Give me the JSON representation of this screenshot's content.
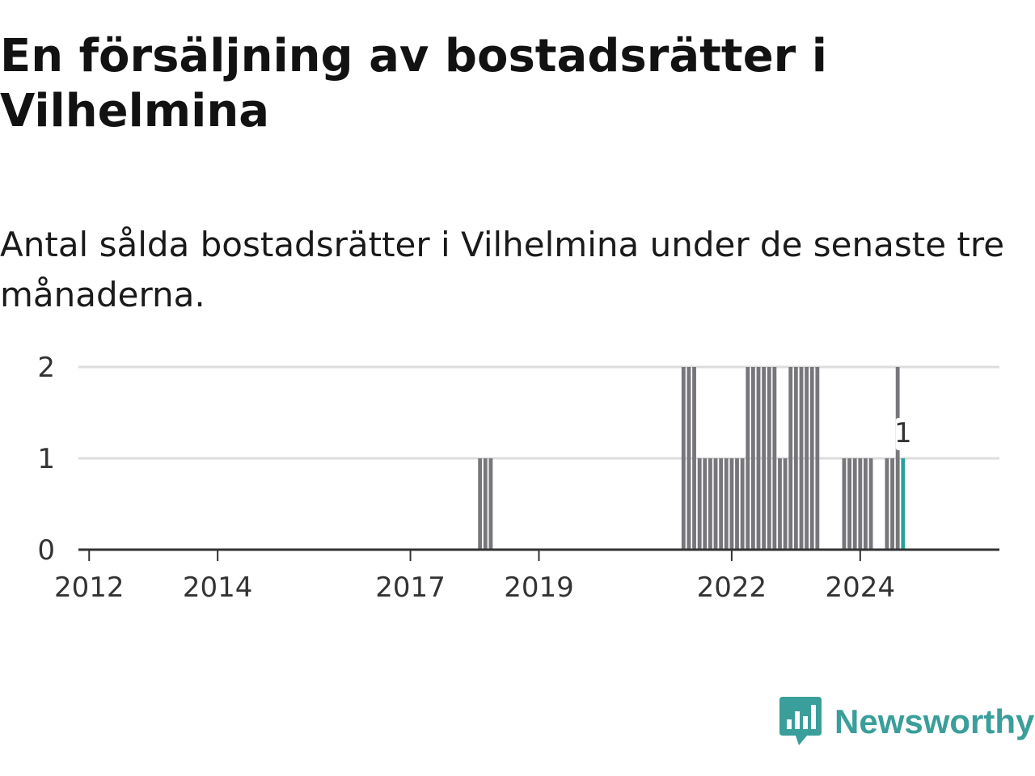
{
  "title": "En försäljning av bostadsrätter i Vilhelmina",
  "subtitle": "Antal sålda bostadsrätter i Vilhelmina under de senaste tre månaderna.",
  "brand": {
    "name": "Newsworthy",
    "color": "#3a9e9a",
    "icon": "newsworthy-logo-icon"
  },
  "colors": {
    "bar": "#76767b",
    "highlight": "#2aa198",
    "grid": "#dddddd",
    "axis": "#333333"
  },
  "chart_data": {
    "type": "bar",
    "title": "En försäljning av bostadsrätter i Vilhelmina",
    "xlabel": "",
    "ylabel": "",
    "ylim": [
      0,
      2
    ],
    "yticks": [
      0,
      1,
      2
    ],
    "xticks": [
      "2012",
      "2014",
      "2017",
      "2019",
      "2022",
      "2024"
    ],
    "grid": true,
    "annotation": {
      "period": "2024-09",
      "label": "1"
    },
    "bars": [
      {
        "period": "2018-02",
        "value": 1
      },
      {
        "period": "2018-03",
        "value": 1
      },
      {
        "period": "2018-04",
        "value": 1
      },
      {
        "period": "2021-04",
        "value": 2
      },
      {
        "period": "2021-05",
        "value": 2
      },
      {
        "period": "2021-06",
        "value": 2
      },
      {
        "period": "2021-07",
        "value": 1
      },
      {
        "period": "2021-08",
        "value": 1
      },
      {
        "period": "2021-09",
        "value": 1
      },
      {
        "period": "2021-10",
        "value": 1
      },
      {
        "period": "2021-11",
        "value": 1
      },
      {
        "period": "2021-12",
        "value": 1
      },
      {
        "period": "2022-01",
        "value": 1
      },
      {
        "period": "2022-02",
        "value": 1
      },
      {
        "period": "2022-03",
        "value": 1
      },
      {
        "period": "2022-04",
        "value": 2
      },
      {
        "period": "2022-05",
        "value": 2
      },
      {
        "period": "2022-06",
        "value": 2
      },
      {
        "period": "2022-07",
        "value": 2
      },
      {
        "period": "2022-08",
        "value": 2
      },
      {
        "period": "2022-09",
        "value": 2
      },
      {
        "period": "2022-10",
        "value": 1
      },
      {
        "period": "2022-11",
        "value": 1
      },
      {
        "period": "2022-12",
        "value": 2
      },
      {
        "period": "2023-01",
        "value": 2
      },
      {
        "period": "2023-02",
        "value": 2
      },
      {
        "period": "2023-03",
        "value": 2
      },
      {
        "period": "2023-04",
        "value": 2
      },
      {
        "period": "2023-05",
        "value": 2
      },
      {
        "period": "2023-10",
        "value": 1
      },
      {
        "period": "2023-11",
        "value": 1
      },
      {
        "period": "2023-12",
        "value": 1
      },
      {
        "period": "2024-01",
        "value": 1
      },
      {
        "period": "2024-02",
        "value": 1
      },
      {
        "period": "2024-03",
        "value": 1
      },
      {
        "period": "2024-06",
        "value": 1
      },
      {
        "period": "2024-07",
        "value": 1
      },
      {
        "period": "2024-08",
        "value": 2
      },
      {
        "period": "2024-09",
        "value": 1
      }
    ]
  }
}
